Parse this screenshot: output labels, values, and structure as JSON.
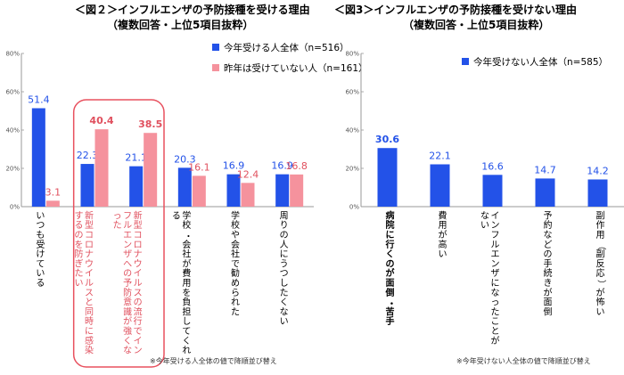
{
  "colors": {
    "primary": "#2352e8",
    "secondary": "#f5929d",
    "secondary_label": "#e0505e",
    "highlight_border": "#e8505e",
    "axis": "#999999",
    "grid": "#dddddd"
  },
  "chart_data": [
    {
      "type": "bar",
      "title": "＜図２＞インフルエンザの予防接種を受ける理由",
      "subtitle": "（複数回答・上位5項目抜粋）",
      "ylim": [
        0,
        80
      ],
      "yticks": [
        "0%",
        "20%",
        "40%",
        "60%",
        "80%"
      ],
      "categories": [
        "いつも受けている",
        "新型コロナウイルスと同時に感染するのを防ぎたい",
        "新型コロナウイルスの流行でインフルエンザへの予防意識が強くなった",
        "学校・会社が費用を負担してくれる",
        "学校や会社で勧められた",
        "周りの人にうつしたくない"
      ],
      "series": [
        {
          "name": "今年受ける人全体（n=516）",
          "values": [
            51.4,
            22.3,
            21.1,
            20.3,
            16.9,
            16.9
          ]
        },
        {
          "name": "昨年は受けていない人（n=161）",
          "values": [
            3.1,
            40.4,
            38.5,
            16.1,
            12.4,
            16.8
          ]
        }
      ],
      "value_labels": [
        [
          "51.4",
          "22.3",
          "21.1",
          "20.3",
          "16.9",
          "16.9"
        ],
        [
          "3.1",
          "40.4",
          "38.5",
          "16.1",
          "12.4",
          "16.8"
        ]
      ],
      "grid": false,
      "legend": "top-right",
      "highlight_categories": [
        1,
        2
      ],
      "footnote": "※今年受ける人全体の値で降順並び替え"
    },
    {
      "type": "bar",
      "title": "＜図3＞インフルエンザの予防接種を受けない理由",
      "subtitle": "（複数回答・上位5項目抜粋）",
      "ylim": [
        0,
        80
      ],
      "yticks": [
        "0%",
        "20%",
        "40%",
        "60%",
        "80%"
      ],
      "categories": [
        "病院に行くのが面倒・苦手",
        "費用が高い",
        "インフルエンザになったことがない",
        "予約などの手続きが面倒",
        "副作用（副反応）が怖い"
      ],
      "series": [
        {
          "name": "今年受けない人全体（n=585）",
          "values": [
            30.6,
            22.1,
            16.6,
            14.7,
            14.2
          ]
        }
      ],
      "value_labels": [
        [
          "30.6",
          "22.1",
          "16.6",
          "14.7",
          "14.2"
        ]
      ],
      "grid": false,
      "legend": "top",
      "bold_categories": [
        0
      ],
      "footnote": "※今年受けない人全体の値で降順並び替え"
    }
  ]
}
